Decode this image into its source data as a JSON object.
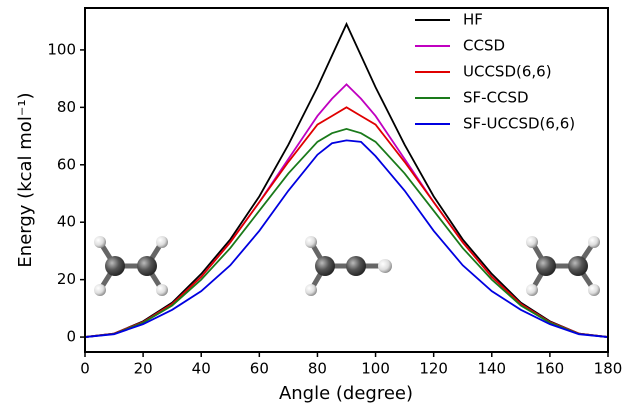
{
  "chart_data": {
    "type": "line",
    "xlabel": "Angle (degree)",
    "ylabel": "Energy (kcal mol⁻¹)",
    "x": [
      0,
      10,
      20,
      30,
      40,
      50,
      60,
      70,
      80,
      85,
      90,
      95,
      100,
      110,
      120,
      130,
      140,
      150,
      160,
      170,
      180
    ],
    "series": [
      {
        "name": "HF",
        "color": "#000000",
        "values": [
          0,
          1.2,
          5.5,
          12,
          22,
          34,
          49,
          67,
          87,
          98,
          109,
          98,
          87,
          67,
          49,
          34,
          22,
          12,
          5.5,
          1.2,
          0
        ]
      },
      {
        "name": "CCSD",
        "color": "#c000c0",
        "values": [
          0,
          1.2,
          5.2,
          11.5,
          21,
          33,
          47,
          62,
          77,
          83,
          88,
          83,
          77,
          62,
          47,
          33,
          21,
          11.5,
          5.2,
          1.2,
          0
        ]
      },
      {
        "name": "UCCSD(6,6)",
        "color": "#e00000",
        "values": [
          0,
          1.2,
          5.2,
          11.5,
          21,
          33,
          47,
          61,
          74,
          77,
          80,
          77,
          74,
          61,
          47,
          33,
          21,
          11.5,
          5.2,
          1.2,
          0
        ]
      },
      {
        "name": "SF-CCSD",
        "color": "#1a7a1a",
        "values": [
          0,
          1.1,
          5,
          11,
          20,
          31,
          44,
          57,
          68,
          71,
          72.5,
          71,
          68,
          57,
          44,
          31,
          20,
          11,
          5,
          1.1,
          0
        ]
      },
      {
        "name": "SF-UCCSD(6,6)",
        "color": "#0000e0",
        "values": [
          0,
          1,
          4.5,
          9.5,
          16,
          25,
          37,
          51,
          63.5,
          67.5,
          68.5,
          68,
          63,
          51,
          37,
          25,
          16,
          9.5,
          4.5,
          1,
          0
        ]
      }
    ],
    "xlim": [
      0,
      180
    ],
    "xticks": [
      0,
      20,
      40,
      60,
      80,
      100,
      120,
      140,
      160,
      180
    ],
    "ylim": [
      -5.2,
      114.6
    ],
    "yticks": [
      0,
      20,
      40,
      60,
      80,
      100
    ],
    "legend": "upper right"
  }
}
